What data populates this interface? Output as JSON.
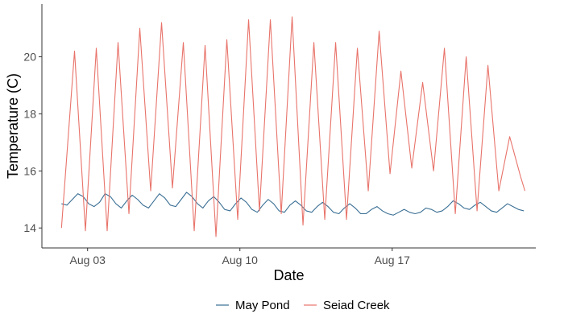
{
  "chart_data": {
    "type": "line",
    "title": "",
    "xlabel": "Date",
    "ylabel": "Temperature (C)",
    "x_unit": "days since Aug 01",
    "x_ticks": [
      {
        "label": "Aug 03",
        "value": 2
      },
      {
        "label": "Aug 10",
        "value": 9
      },
      {
        "label": "Aug 17",
        "value": 16
      }
    ],
    "y_ticks": [
      14,
      16,
      18,
      20
    ],
    "xlim": [
      -0.1,
      22.6
    ],
    "ylim": [
      13.3,
      21.85
    ],
    "grid": false,
    "legend_position": "bottom",
    "series": [
      {
        "name": "May Pond",
        "color": "#3a6f94",
        "x": [
          0.8,
          1.05,
          1.3,
          1.55,
          1.8,
          2.05,
          2.3,
          2.55,
          2.8,
          3.05,
          3.3,
          3.55,
          3.8,
          4.05,
          4.3,
          4.55,
          4.8,
          5.05,
          5.3,
          5.55,
          5.8,
          6.05,
          6.3,
          6.55,
          6.8,
          7.05,
          7.3,
          7.55,
          7.8,
          8.05,
          8.3,
          8.55,
          8.8,
          9.05,
          9.3,
          9.55,
          9.8,
          10.05,
          10.3,
          10.55,
          10.8,
          11.05,
          11.3,
          11.55,
          11.8,
          12.05,
          12.3,
          12.55,
          12.8,
          13.05,
          13.3,
          13.55,
          13.8,
          14.05,
          14.3,
          14.55,
          14.8,
          15.05,
          15.3,
          15.55,
          15.8,
          16.05,
          16.3,
          16.55,
          16.8,
          17.05,
          17.3,
          17.55,
          17.8,
          18.05,
          18.3,
          18.55,
          18.8,
          19.05,
          19.3,
          19.55,
          19.8,
          20.05,
          20.3,
          20.55,
          20.8,
          21.05,
          21.3,
          21.55,
          21.8,
          22.05
        ],
        "y": [
          14.85,
          14.8,
          15.0,
          15.2,
          15.1,
          14.85,
          14.75,
          14.9,
          15.2,
          15.1,
          14.85,
          14.7,
          14.95,
          15.15,
          15.0,
          14.8,
          14.7,
          14.95,
          15.2,
          15.05,
          14.8,
          14.75,
          15.0,
          15.25,
          15.1,
          14.85,
          14.7,
          14.95,
          15.1,
          14.9,
          14.65,
          14.6,
          14.85,
          15.05,
          14.9,
          14.65,
          14.55,
          14.8,
          15.0,
          14.85,
          14.6,
          14.55,
          14.8,
          14.95,
          14.8,
          14.6,
          14.55,
          14.75,
          14.9,
          14.75,
          14.55,
          14.5,
          14.7,
          14.85,
          14.7,
          14.5,
          14.5,
          14.65,
          14.75,
          14.6,
          14.5,
          14.45,
          14.55,
          14.65,
          14.55,
          14.5,
          14.55,
          14.7,
          14.65,
          14.55,
          14.6,
          14.75,
          14.95,
          14.85,
          14.7,
          14.65,
          14.8,
          14.9,
          14.75,
          14.6,
          14.55,
          14.7,
          14.85,
          14.75,
          14.65,
          14.6
        ]
      },
      {
        "name": "Seiad Creek",
        "color": "#e8736a",
        "x": [
          0.8,
          1.4,
          1.9,
          2.4,
          2.9,
          3.4,
          3.9,
          4.4,
          4.9,
          5.4,
          5.9,
          6.4,
          6.9,
          7.4,
          7.9,
          8.4,
          8.9,
          9.4,
          9.9,
          10.4,
          10.9,
          11.4,
          11.9,
          12.4,
          12.9,
          13.4,
          13.9,
          14.4,
          14.9,
          15.4,
          15.9,
          16.4,
          16.9,
          17.4,
          17.9,
          18.4,
          18.9,
          19.4,
          19.9,
          20.4,
          20.9,
          21.4,
          21.9,
          22.1
        ],
        "y": [
          14.0,
          20.2,
          13.9,
          20.3,
          13.9,
          20.5,
          14.5,
          21.0,
          15.3,
          21.2,
          15.4,
          20.5,
          13.9,
          20.4,
          13.7,
          20.6,
          14.3,
          21.3,
          14.6,
          21.3,
          14.5,
          21.4,
          14.1,
          20.5,
          14.3,
          20.5,
          14.3,
          20.3,
          15.3,
          20.9,
          15.9,
          19.5,
          16.1,
          19.1,
          16.0,
          20.3,
          14.5,
          20.0,
          14.6,
          19.7,
          15.3,
          17.2,
          15.8,
          15.3
        ]
      }
    ]
  }
}
